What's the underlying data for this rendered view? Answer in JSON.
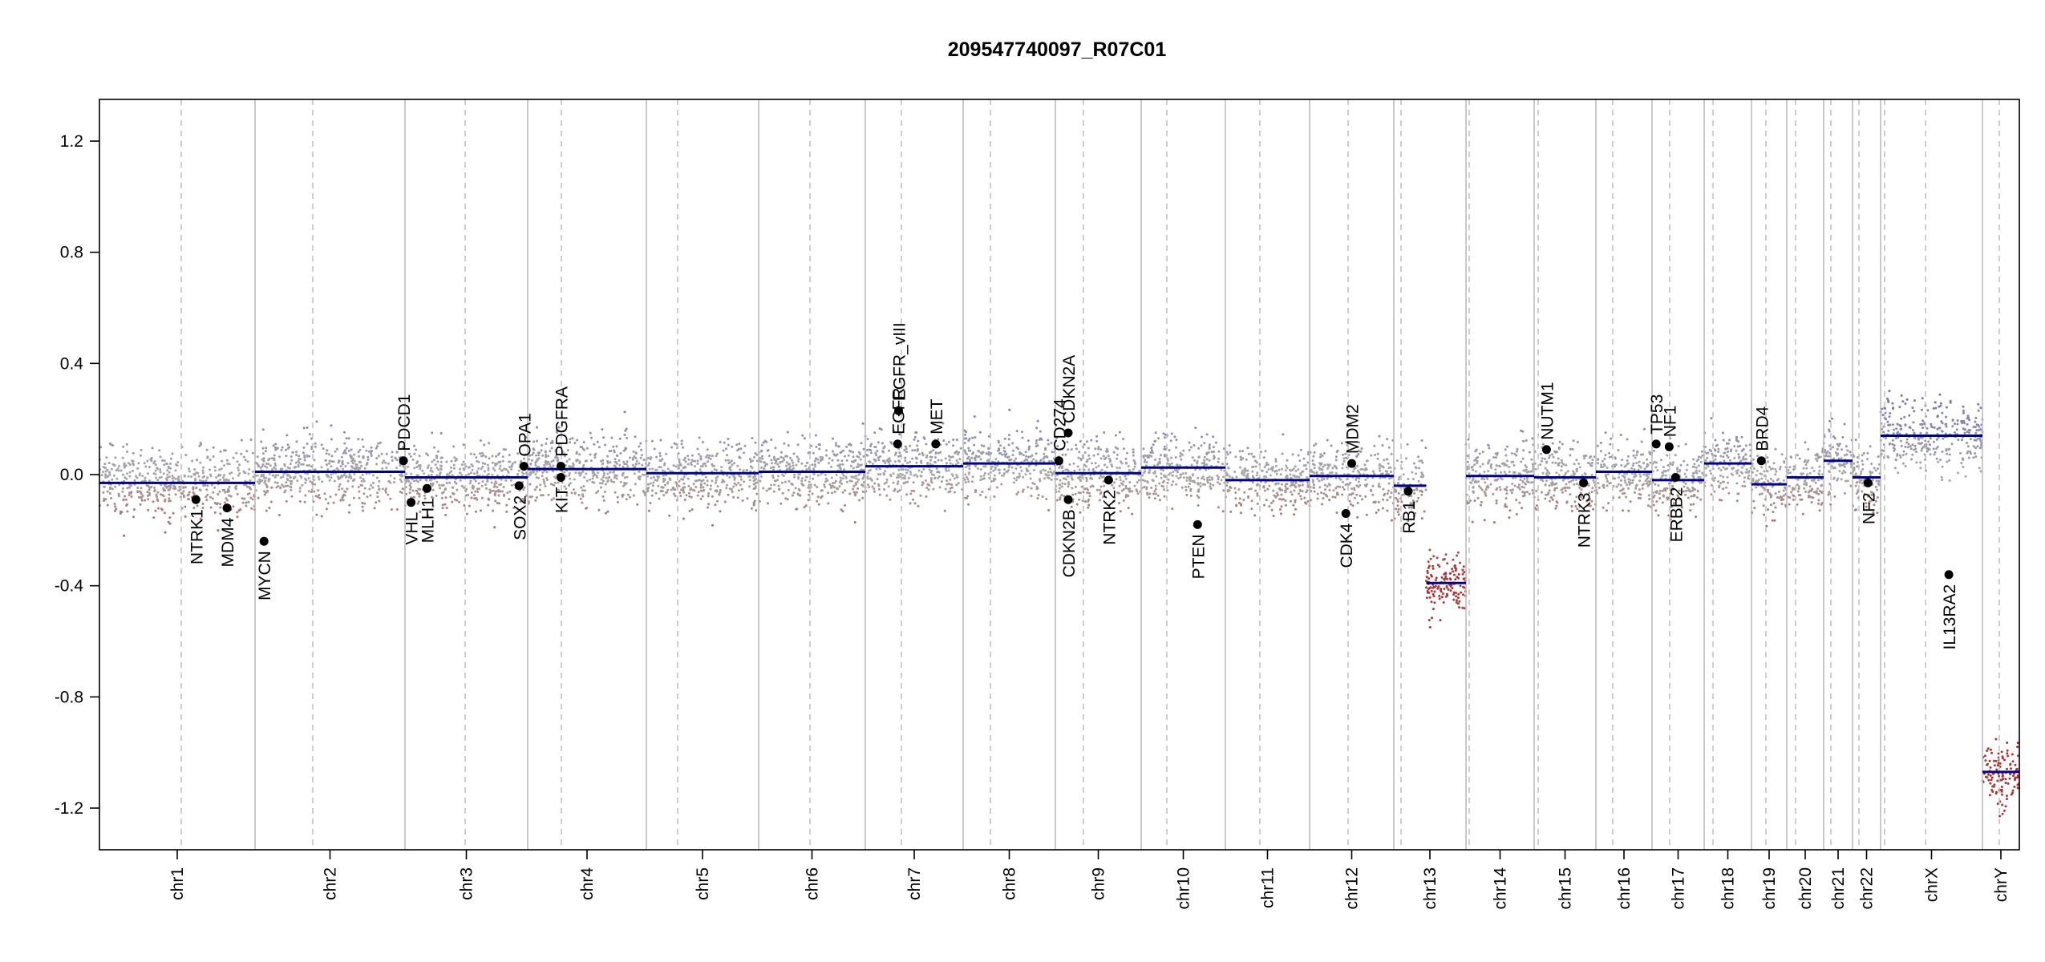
{
  "chart_data": {
    "type": "scatter",
    "title": "209547740097_R07C01",
    "xlabel": "",
    "ylabel": "",
    "ylim": [
      -1.35,
      1.35
    ],
    "yticks": [
      -1.2,
      -0.8,
      -0.4,
      0.0,
      0.4,
      0.8,
      1.2
    ],
    "ytick_labels": [
      "-1.2",
      "-0.8",
      "-0.4",
      "0.0",
      "0.4",
      "0.8",
      "1.2"
    ],
    "grid": false,
    "colors": {
      "segment": "#00008b",
      "gain_points": "#6b6bb3",
      "loss_points": "#a83a3a",
      "neutral_points": "#a8a8a8",
      "boundary": "#bdbdbd",
      "centromere": "#bdbdbd",
      "gene_marker": "#000000"
    },
    "chromosomes": [
      {
        "name": "chr1",
        "segments": [
          {
            "from": 0.0,
            "to": 1.0,
            "value": -0.03
          }
        ]
      },
      {
        "name": "chr2",
        "segments": [
          {
            "from": 0.0,
            "to": 1.0,
            "value": 0.01
          }
        ]
      },
      {
        "name": "chr3",
        "segments": [
          {
            "from": 0.0,
            "to": 1.0,
            "value": -0.01
          }
        ]
      },
      {
        "name": "chr4",
        "segments": [
          {
            "from": 0.0,
            "to": 1.0,
            "value": 0.02
          }
        ]
      },
      {
        "name": "chr5",
        "segments": [
          {
            "from": 0.0,
            "to": 1.0,
            "value": 0.005
          }
        ]
      },
      {
        "name": "chr6",
        "segments": [
          {
            "from": 0.0,
            "to": 1.0,
            "value": 0.01
          }
        ]
      },
      {
        "name": "chr7",
        "segments": [
          {
            "from": 0.0,
            "to": 1.0,
            "value": 0.03
          }
        ]
      },
      {
        "name": "chr8",
        "segments": [
          {
            "from": 0.0,
            "to": 1.0,
            "value": 0.04
          }
        ]
      },
      {
        "name": "chr9",
        "segments": [
          {
            "from": 0.0,
            "to": 1.0,
            "value": 0.005
          }
        ]
      },
      {
        "name": "chr10",
        "segments": [
          {
            "from": 0.0,
            "to": 1.0,
            "value": 0.025
          }
        ]
      },
      {
        "name": "chr11",
        "segments": [
          {
            "from": 0.0,
            "to": 1.0,
            "value": -0.02
          }
        ]
      },
      {
        "name": "chr12",
        "segments": [
          {
            "from": 0.0,
            "to": 1.0,
            "value": -0.005
          }
        ]
      },
      {
        "name": "chr13",
        "segments": [
          {
            "from": 0.0,
            "to": 0.45,
            "value": -0.04
          },
          {
            "from": 0.45,
            "to": 1.0,
            "value": -0.39
          }
        ]
      },
      {
        "name": "chr14",
        "segments": [
          {
            "from": 0.0,
            "to": 1.0,
            "value": -0.005
          }
        ]
      },
      {
        "name": "chr15",
        "segments": [
          {
            "from": 0.0,
            "to": 1.0,
            "value": -0.01
          }
        ]
      },
      {
        "name": "chr16",
        "segments": [
          {
            "from": 0.0,
            "to": 1.0,
            "value": 0.01
          }
        ]
      },
      {
        "name": "chr17",
        "segments": [
          {
            "from": 0.0,
            "to": 1.0,
            "value": -0.02
          }
        ]
      },
      {
        "name": "chr18",
        "segments": [
          {
            "from": 0.0,
            "to": 1.0,
            "value": 0.04
          }
        ]
      },
      {
        "name": "chr19",
        "segments": [
          {
            "from": 0.0,
            "to": 1.0,
            "value": -0.035
          }
        ]
      },
      {
        "name": "chr20",
        "segments": [
          {
            "from": 0.0,
            "to": 1.0,
            "value": -0.01
          }
        ]
      },
      {
        "name": "chr21",
        "segments": [
          {
            "from": 0.0,
            "to": 1.0,
            "value": 0.05
          }
        ]
      },
      {
        "name": "chr22",
        "segments": [
          {
            "from": 0.0,
            "to": 1.0,
            "value": -0.01
          }
        ]
      },
      {
        "name": "chrX",
        "segments": [
          {
            "from": 0.0,
            "to": 1.0,
            "value": 0.14
          }
        ]
      },
      {
        "name": "chrY",
        "segments": [
          {
            "from": 0.0,
            "to": 1.0,
            "value": -1.07
          }
        ]
      }
    ],
    "genes": [
      {
        "name": "NTRK1",
        "chrom": "chr1",
        "pos": 0.62,
        "value": -0.09
      },
      {
        "name": "MDM4",
        "chrom": "chr1",
        "pos": 0.82,
        "value": -0.12
      },
      {
        "name": "MYCN",
        "chrom": "chr2",
        "pos": 0.06,
        "value": -0.24
      },
      {
        "name": "PDCD1",
        "chrom": "chr2",
        "pos": 0.99,
        "value": 0.05
      },
      {
        "name": "VHL",
        "chrom": "chr3",
        "pos": 0.05,
        "value": -0.1
      },
      {
        "name": "MLH1",
        "chrom": "chr3",
        "pos": 0.18,
        "value": -0.05
      },
      {
        "name": "SOX2",
        "chrom": "chr3",
        "pos": 0.93,
        "value": -0.04
      },
      {
        "name": "OPA1",
        "chrom": "chr3",
        "pos": 0.97,
        "value": 0.03
      },
      {
        "name": "KIT",
        "chrom": "chr4",
        "pos": 0.28,
        "value": -0.01
      },
      {
        "name": "PDGFRA",
        "chrom": "chr4",
        "pos": 0.28,
        "value": 0.03
      },
      {
        "name": "EGFR",
        "chrom": "chr7",
        "pos": 0.33,
        "value": 0.11
      },
      {
        "name": "EGFR_vIII",
        "chrom": "chr7",
        "pos": 0.34,
        "value": 0.23
      },
      {
        "name": "MET",
        "chrom": "chr7",
        "pos": 0.72,
        "value": 0.11
      },
      {
        "name": "CD274",
        "chrom": "chr9",
        "pos": 0.04,
        "value": 0.05
      },
      {
        "name": "CDKN2A",
        "chrom": "chr9",
        "pos": 0.15,
        "value": 0.15
      },
      {
        "name": "CDKN2B",
        "chrom": "chr9",
        "pos": 0.15,
        "value": -0.09
      },
      {
        "name": "NTRK2",
        "chrom": "chr9",
        "pos": 0.62,
        "value": -0.02
      },
      {
        "name": "PTEN",
        "chrom": "chr10",
        "pos": 0.67,
        "value": -0.18
      },
      {
        "name": "CDK4",
        "chrom": "chr12",
        "pos": 0.43,
        "value": -0.14
      },
      {
        "name": "MDM2",
        "chrom": "chr12",
        "pos": 0.5,
        "value": 0.04
      },
      {
        "name": "RB1",
        "chrom": "chr13",
        "pos": 0.2,
        "value": -0.06
      },
      {
        "name": "NUTM1",
        "chrom": "chr15",
        "pos": 0.2,
        "value": 0.09
      },
      {
        "name": "NTRK3",
        "chrom": "chr15",
        "pos": 0.8,
        "value": -0.03
      },
      {
        "name": "TP53",
        "chrom": "chr17",
        "pos": 0.08,
        "value": 0.11
      },
      {
        "name": "NF1",
        "chrom": "chr17",
        "pos": 0.33,
        "value": 0.1
      },
      {
        "name": "ERBB2",
        "chrom": "chr17",
        "pos": 0.45,
        "value": -0.01
      },
      {
        "name": "BRD4",
        "chrom": "chr19",
        "pos": 0.28,
        "value": 0.05
      },
      {
        "name": "NF2",
        "chrom": "chr22",
        "pos": 0.55,
        "value": -0.03
      },
      {
        "name": "IL13RA2",
        "chrom": "chrX",
        "pos": 0.67,
        "value": -0.36
      }
    ]
  }
}
